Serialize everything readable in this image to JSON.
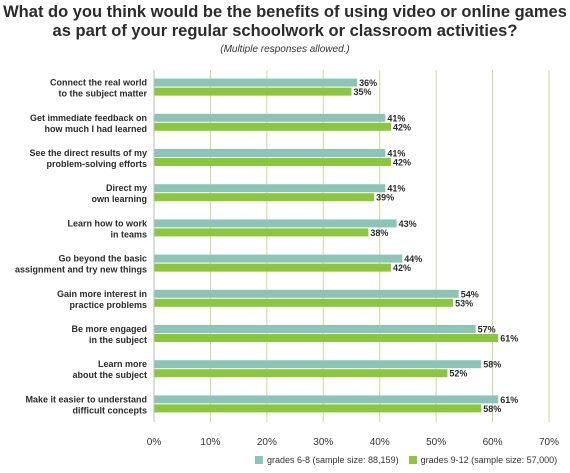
{
  "chart_data": {
    "type": "bar",
    "orientation": "horizontal",
    "title": "What do you think would be the benefits of using video or online games as part of your regular schoolwork or classroom activities?",
    "subtitle": "(Multiple responses allowed.)",
    "categories": [
      [
        "Connect the real world",
        "to the subject matter"
      ],
      [
        "Get immediate feedback on",
        "how much I had learned"
      ],
      [
        "See the direct results of my",
        "problem-solving efforts"
      ],
      [
        "Direct my",
        "own learning"
      ],
      [
        "Learn how to work",
        "in teams"
      ],
      [
        "Go beyond the basic",
        "assignment and try new things"
      ],
      [
        "Gain more interest in",
        "practice problems"
      ],
      [
        "Be more engaged",
        "in the subject"
      ],
      [
        "Learn more",
        "about the subject"
      ],
      [
        "Make it easier to understand",
        "difficult concepts"
      ]
    ],
    "series": [
      {
        "name": "grades 6-8 (sample size: 88,159)",
        "color": "#8cc5b7",
        "values": [
          36,
          41,
          41,
          41,
          43,
          44,
          54,
          57,
          58,
          61
        ]
      },
      {
        "name": "grades 9-12 (sample size: 57,000)",
        "color": "#8cc63f",
        "values": [
          35,
          42,
          42,
          39,
          38,
          42,
          53,
          61,
          52,
          58
        ]
      }
    ],
    "value_suffix": "%",
    "xticks": [
      "0%",
      "10%",
      "20%",
      "30%",
      "40%",
      "50%",
      "60%",
      "70%"
    ],
    "xlim": [
      0,
      70
    ],
    "grid": true,
    "gridline_color": "#c9d7a3",
    "legend_position": "bottom"
  }
}
